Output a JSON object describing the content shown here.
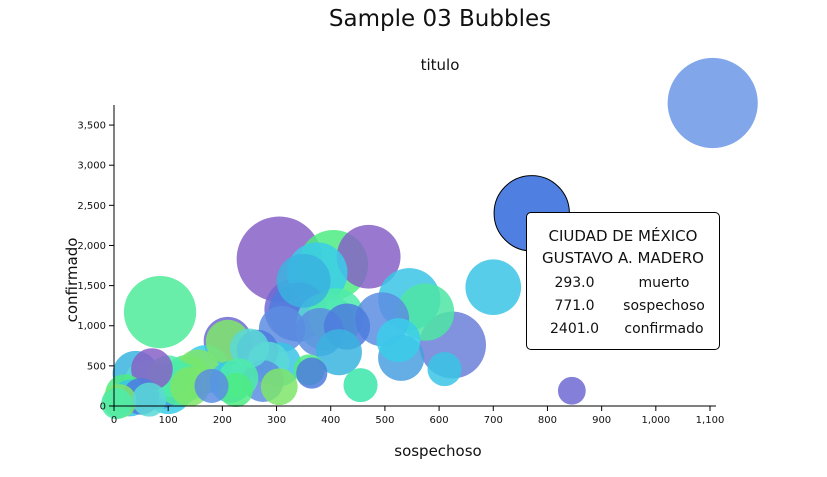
{
  "title": "Sample 03 Bubbles",
  "subtitle": "titulo",
  "chart_data": {
    "type": "scatter",
    "xlabel": "sospechoso",
    "ylabel": "confirmado",
    "xlim": [
      0,
      1100
    ],
    "ylim": [
      0,
      3750
    ],
    "x_ticks": [
      "0",
      "100",
      "200",
      "300",
      "400",
      "500",
      "600",
      "700",
      "800",
      "900",
      "1,000",
      "1,100"
    ],
    "y_ticks": [
      "0",
      "500",
      "1,000",
      "1,500",
      "2,000",
      "2,500",
      "3,000",
      "3,500"
    ],
    "size_by": "muerto",
    "points": [
      {
        "x": 1105,
        "y": 3775,
        "size": 420,
        "color": "#6b96e6"
      },
      {
        "x": 771,
        "y": 2401,
        "size": 293,
        "color": "#4f80e1",
        "highlighted": true
      },
      {
        "x": 305,
        "y": 1830,
        "size": 375,
        "color": "#8662c7"
      },
      {
        "x": 405,
        "y": 1760,
        "size": 250,
        "color": "#4deb83"
      },
      {
        "x": 470,
        "y": 1860,
        "size": 210,
        "color": "#8662c7"
      },
      {
        "x": 375,
        "y": 1660,
        "size": 190,
        "color": "#39cdea"
      },
      {
        "x": 350,
        "y": 1560,
        "size": 150,
        "color": "#39b3df"
      },
      {
        "x": 85,
        "y": 1170,
        "size": 270,
        "color": "#4deb9a"
      },
      {
        "x": 335,
        "y": 1200,
        "size": 200,
        "color": "#6f6ad2"
      },
      {
        "x": 340,
        "y": 1170,
        "size": 180,
        "color": "#4d7bde"
      },
      {
        "x": 390,
        "y": 1050,
        "size": 170,
        "color": "#5ad9d6"
      },
      {
        "x": 410,
        "y": 1120,
        "size": 160,
        "color": "#4debaa"
      },
      {
        "x": 430,
        "y": 990,
        "size": 110,
        "color": "#4d7bde"
      },
      {
        "x": 380,
        "y": 920,
        "size": 120,
        "color": "#5c8de0"
      },
      {
        "x": 495,
        "y": 1080,
        "size": 150,
        "color": "#5c8de0"
      },
      {
        "x": 545,
        "y": 1330,
        "size": 200,
        "color": "#39c4e6"
      },
      {
        "x": 575,
        "y": 1170,
        "size": 170,
        "color": "#4de5a5"
      },
      {
        "x": 625,
        "y": 760,
        "size": 230,
        "color": "#6b7fd8"
      },
      {
        "x": 700,
        "y": 1480,
        "size": 160,
        "color": "#39c4e6"
      },
      {
        "x": 525,
        "y": 820,
        "size": 100,
        "color": "#39cdea"
      },
      {
        "x": 530,
        "y": 600,
        "size": 110,
        "color": "#4a9fe0"
      },
      {
        "x": 415,
        "y": 670,
        "size": 110,
        "color": "#39b3df"
      },
      {
        "x": 310,
        "y": 960,
        "size": 110,
        "color": "#5c8de0"
      },
      {
        "x": 210,
        "y": 810,
        "size": 120,
        "color": "#6f6ad2"
      },
      {
        "x": 210,
        "y": 800,
        "size": 100,
        "color": "#7ee56a"
      },
      {
        "x": 250,
        "y": 720,
        "size": 80,
        "color": "#5ad9d6"
      },
      {
        "x": 265,
        "y": 690,
        "size": 90,
        "color": "#4d7bde"
      },
      {
        "x": 305,
        "y": 520,
        "size": 100,
        "color": "#39c4e6"
      },
      {
        "x": 285,
        "y": 540,
        "size": 90,
        "color": "#5ad9d6"
      },
      {
        "x": 170,
        "y": 460,
        "size": 120,
        "color": "#39cdea"
      },
      {
        "x": 135,
        "y": 350,
        "size": 110,
        "color": "#4deb83"
      },
      {
        "x": 155,
        "y": 430,
        "size": 100,
        "color": "#7ee56a"
      },
      {
        "x": 100,
        "y": 370,
        "size": 90,
        "color": "#4debaa"
      },
      {
        "x": 70,
        "y": 460,
        "size": 90,
        "color": "#8662c7"
      },
      {
        "x": 40,
        "y": 400,
        "size": 110,
        "color": "#39b3df"
      },
      {
        "x": 60,
        "y": 300,
        "size": 100,
        "color": "#5ad9d6"
      },
      {
        "x": 85,
        "y": 250,
        "size": 110,
        "color": "#4a9fe0"
      },
      {
        "x": 100,
        "y": 200,
        "size": 120,
        "color": "#39cdea"
      },
      {
        "x": 120,
        "y": 280,
        "size": 100,
        "color": "#4deb9a"
      },
      {
        "x": 140,
        "y": 240,
        "size": 80,
        "color": "#7ee56a"
      },
      {
        "x": 215,
        "y": 300,
        "size": 90,
        "color": "#39c4e6"
      },
      {
        "x": 230,
        "y": 350,
        "size": 80,
        "color": "#4debaa"
      },
      {
        "x": 275,
        "y": 310,
        "size": 90,
        "color": "#5c8de0"
      },
      {
        "x": 305,
        "y": 240,
        "size": 70,
        "color": "#7ee56a"
      },
      {
        "x": 225,
        "y": 200,
        "size": 60,
        "color": "#4deb83"
      },
      {
        "x": 360,
        "y": 450,
        "size": 50,
        "color": "#4deb83"
      },
      {
        "x": 365,
        "y": 410,
        "size": 50,
        "color": "#4d7bde"
      },
      {
        "x": 455,
        "y": 260,
        "size": 60,
        "color": "#39e6aa"
      },
      {
        "x": 610,
        "y": 460,
        "size": 60,
        "color": "#39c4e6"
      },
      {
        "x": 845,
        "y": 190,
        "size": 40,
        "color": "#6f6ad2"
      },
      {
        "x": 20,
        "y": 150,
        "size": 80,
        "color": "#4deb83"
      },
      {
        "x": 30,
        "y": 100,
        "size": 70,
        "color": "#39c4e6"
      },
      {
        "x": 10,
        "y": 60,
        "size": 60,
        "color": "#7ee56a"
      },
      {
        "x": 5,
        "y": 30,
        "size": 50,
        "color": "#4debaa"
      },
      {
        "x": 50,
        "y": 120,
        "size": 70,
        "color": "#4d7bde"
      },
      {
        "x": 65,
        "y": 80,
        "size": 60,
        "color": "#5ad9d6"
      },
      {
        "x": 180,
        "y": 250,
        "size": 60,
        "color": "#5c8de0"
      }
    ],
    "tooltip": {
      "name_lines": [
        "CIUDAD DE MÉXICO",
        "GUSTAVO A. MADERO"
      ],
      "rows": [
        {
          "value": "293.0",
          "label": "muerto"
        },
        {
          "value": "771.0",
          "label": "sospechoso"
        },
        {
          "value": "2401.0",
          "label": "confirmado"
        }
      ]
    }
  }
}
